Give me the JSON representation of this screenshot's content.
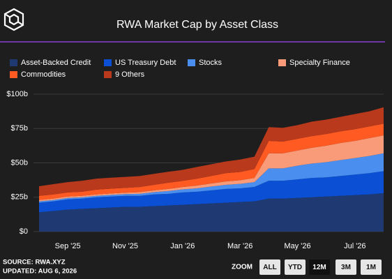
{
  "chart_data": {
    "type": "stacked-area",
    "title": "RWA Market Cap by Asset Class",
    "categories": [
      null,
      null,
      "Sep '25",
      null,
      null,
      null,
      "Nov '25",
      null,
      null,
      null,
      "Jan '26",
      null,
      null,
      null,
      "Mar '26",
      null,
      null,
      null,
      "May '26",
      null,
      null,
      null,
      "Jul '26",
      null,
      null
    ],
    "series": [
      {
        "name": "Asset-Backed Credit",
        "color": "#1f3a73",
        "values": [
          14,
          15,
          16,
          16.5,
          17,
          17.5,
          18,
          18,
          18.5,
          19,
          19.5,
          20,
          20.5,
          21,
          21.5,
          22,
          24,
          24,
          24.5,
          25,
          25.5,
          26,
          26.5,
          27,
          28
        ]
      },
      {
        "name": "US Treasury Debt",
        "color": "#0a4fd4",
        "values": [
          7,
          7,
          7.5,
          7.5,
          8,
          8,
          8,
          8,
          8.5,
          8.5,
          9,
          9,
          9.5,
          10,
          10,
          10.5,
          13,
          13,
          13.5,
          14,
          14,
          14.5,
          15,
          15.5,
          16
        ]
      },
      {
        "name": "Stocks",
        "color": "#4a8ff0",
        "values": [
          1,
          1,
          1,
          1,
          1,
          1.2,
          1.3,
          1.5,
          1.7,
          2,
          2.2,
          2.5,
          2.8,
          3,
          3.2,
          3.5,
          9,
          9,
          10,
          10.5,
          11,
          11.5,
          12,
          12.5,
          13
        ]
      },
      {
        "name": "Specialty Finance",
        "color": "#f99a78",
        "values": [
          1,
          1,
          1,
          1,
          1,
          1,
          1,
          1.2,
          1.3,
          1.5,
          1.7,
          2,
          2.2,
          2.5,
          2.7,
          3,
          11,
          11,
          11,
          11.5,
          12,
          12.5,
          12.5,
          13,
          13
        ]
      },
      {
        "name": "Commodities",
        "color": "#ff5a22",
        "values": [
          3,
          3,
          3,
          3,
          3.5,
          3.5,
          3.5,
          3.7,
          4,
          4.5,
          4.5,
          5,
          5.5,
          6,
          6,
          6.5,
          9,
          8.5,
          8.5,
          8.5,
          8.5,
          8.5,
          8.5,
          8.5,
          8.5
        ]
      },
      {
        "name": "9 Others",
        "color": "#b8391c",
        "values": [
          7,
          7.5,
          7.5,
          8,
          8,
          8,
          8,
          8,
          8,
          8,
          8,
          8.5,
          8.5,
          8.5,
          9,
          9,
          10,
          10,
          10,
          10.5,
          10.5,
          10.5,
          11,
          11,
          12
        ]
      }
    ],
    "ylim": [
      0,
      100
    ],
    "yticks": [
      {
        "value": 0,
        "label": "$0"
      },
      {
        "value": 25,
        "label": "$25b"
      },
      {
        "value": 50,
        "label": "$50b"
      },
      {
        "value": 75,
        "label": "$75b"
      },
      {
        "value": 100,
        "label": "$100b"
      }
    ],
    "grid": true
  },
  "footer": {
    "source": "SOURCE: RWA.XYZ",
    "updated": "UPDATED: AUG 6, 2026"
  },
  "zoom": {
    "label": "ZOOM",
    "options": [
      "ALL",
      "YTD",
      "12M",
      "3M",
      "1M"
    ],
    "selected": "12M"
  }
}
